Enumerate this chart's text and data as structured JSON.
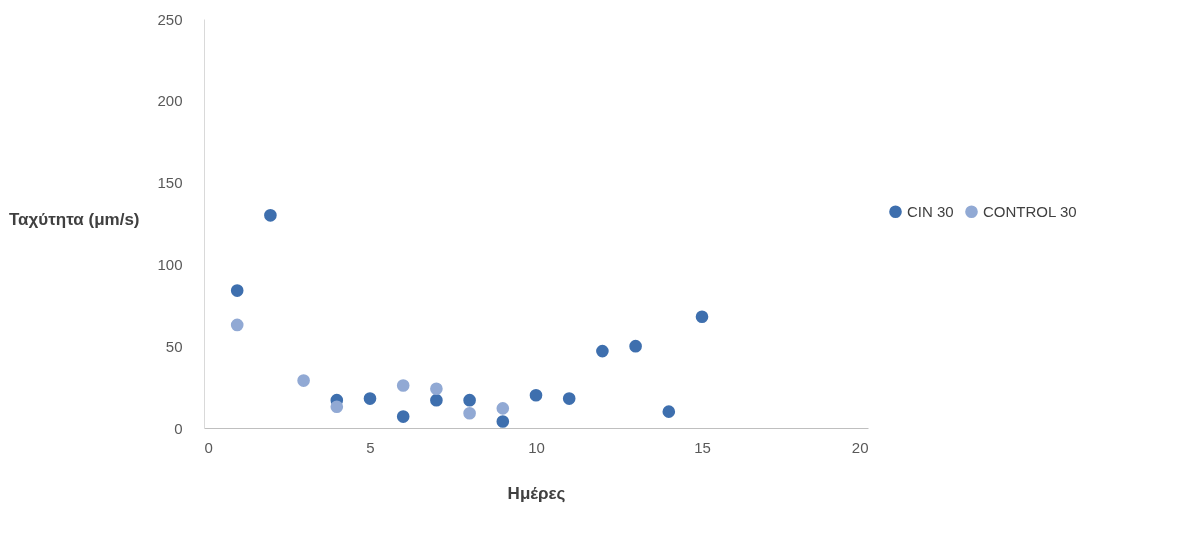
{
  "chart_data": {
    "type": "scatter",
    "xlabel": "Ημέρες",
    "ylabel": "Ταχύτητα (μm/s)",
    "xlim": [
      0,
      20
    ],
    "xticks": [
      0,
      5,
      10,
      15,
      20
    ],
    "ylim": [
      0,
      250
    ],
    "yticks": [
      0,
      50,
      100,
      150,
      200,
      250
    ],
    "grid": false,
    "legend": "right",
    "marker": "circle",
    "series": [
      {
        "name": "CIN 30",
        "color": "#3e6fae",
        "x": [
          1,
          2,
          4,
          5,
          6,
          7,
          8,
          9,
          10,
          11,
          12,
          13,
          14,
          15
        ],
        "values": [
          84,
          130,
          17,
          18,
          7,
          17,
          17,
          4,
          20,
          18,
          47,
          50,
          10,
          68
        ]
      },
      {
        "name": "CONTROL 30",
        "color": "#91a9d4",
        "x": [
          1,
          3,
          4,
          6,
          7,
          8,
          9
        ],
        "values": [
          63,
          29,
          13,
          26,
          24,
          9,
          12
        ]
      }
    ]
  }
}
